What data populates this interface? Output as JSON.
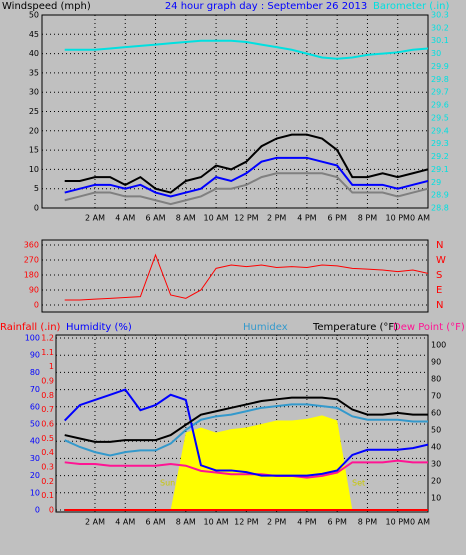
{
  "chart_data": [
    {
      "type": "line",
      "title": "24 hour graph day : September 26 2013",
      "ylabel": "Windspeed (mph)",
      "y2label": "Barometer (.in)",
      "x": [
        0,
        1,
        2,
        3,
        4,
        5,
        6,
        7,
        8,
        9,
        10,
        11,
        12,
        13,
        14,
        15,
        16,
        17,
        18,
        19,
        20,
        21,
        22,
        23,
        24
      ],
      "xlim": [
        -1.5,
        24
      ],
      "xticks": [
        {
          "value": 2,
          "label": "2 AM"
        },
        {
          "value": 4,
          "label": "4 AM"
        },
        {
          "value": 6,
          "label": "6 AM"
        },
        {
          "value": 8,
          "label": "8 AM"
        },
        {
          "value": 10,
          "label": "10 AM"
        },
        {
          "value": 12,
          "label": "12 PM"
        },
        {
          "value": 14,
          "label": "2 PM"
        },
        {
          "value": 16,
          "label": "4 PM"
        },
        {
          "value": 18,
          "label": "6 PM"
        },
        {
          "value": 20,
          "label": "8 PM"
        },
        {
          "value": 22,
          "label": "10 PM"
        },
        {
          "value": 24,
          "label": "0 AM"
        }
      ],
      "ylim": [
        0,
        50
      ],
      "yticks": [
        0,
        5,
        10,
        15,
        20,
        25,
        30,
        35,
        40,
        45,
        50
      ],
      "y2lim": [
        28.8,
        30.3
      ],
      "y2ticks": [
        28.8,
        28.9,
        29,
        29.1,
        29.2,
        29.3,
        29.4,
        29.5,
        29.6,
        29.7,
        29.8,
        29.9,
        30,
        30.1,
        30.2,
        30.3
      ],
      "grid": true,
      "series": [
        {
          "color": "#000000",
          "values": [
            7,
            7,
            8,
            8,
            6,
            8,
            5,
            4,
            7,
            8,
            11,
            10,
            12,
            16,
            18,
            19,
            19,
            18,
            15,
            8,
            8,
            9,
            8,
            9,
            10
          ]
        },
        {
          "color": "#808080",
          "values": [
            2,
            3,
            4,
            4,
            3,
            3,
            2,
            1,
            2,
            3,
            5,
            5,
            6,
            8,
            9,
            9,
            9,
            9,
            8,
            4,
            4,
            4,
            3,
            4,
            5
          ]
        },
        {
          "color": "#0000ff",
          "values": [
            4,
            5,
            6,
            6,
            5,
            6,
            4,
            3,
            4,
            5,
            8,
            7,
            9,
            12,
            13,
            13,
            13,
            12,
            11,
            6,
            6,
            6,
            5,
            6,
            7
          ]
        },
        {
          "color": "#00e0e0",
          "axis": "y2",
          "values": [
            30.03,
            30.03,
            30.03,
            30.04,
            30.05,
            30.06,
            30.07,
            30.08,
            30.09,
            30.1,
            30.1,
            30.1,
            30.09,
            30.07,
            30.05,
            30.03,
            30,
            29.97,
            29.96,
            29.97,
            29.99,
            30,
            30.01,
            30.03,
            30.04
          ]
        }
      ]
    },
    {
      "type": "line",
      "x": [
        0,
        1,
        2,
        3,
        4,
        5,
        6,
        7,
        8,
        9,
        10,
        11,
        12,
        13,
        14,
        15,
        16,
        17,
        18,
        19,
        20,
        21,
        22,
        23,
        24
      ],
      "xlim": [
        -1.5,
        24
      ],
      "ylim": [
        0,
        360
      ],
      "yticks": [
        0,
        90,
        180,
        270,
        360
      ],
      "y2ticks": [
        {
          "value": 360,
          "label": "N"
        },
        {
          "value": 270,
          "label": "W"
        },
        {
          "value": 180,
          "label": "S"
        },
        {
          "value": 90,
          "label": "E"
        },
        {
          "value": 0,
          "label": "N"
        }
      ],
      "grid": true,
      "series": [
        {
          "color": "#ff0000",
          "values": [
            30,
            30,
            35,
            40,
            45,
            50,
            300,
            60,
            40,
            90,
            220,
            240,
            230,
            240,
            225,
            230,
            225,
            240,
            235,
            220,
            215,
            210,
            200,
            210,
            190
          ]
        }
      ]
    },
    {
      "type": "line",
      "x": [
        0,
        1,
        2,
        3,
        4,
        5,
        6,
        7,
        8,
        9,
        10,
        11,
        12,
        13,
        14,
        15,
        16,
        17,
        18,
        19,
        20,
        21,
        22,
        23,
        24
      ],
      "xlim": [
        -1.5,
        24
      ],
      "xticks": [
        {
          "value": 2,
          "label": "2 AM"
        },
        {
          "value": 4,
          "label": "4 AM"
        },
        {
          "value": 6,
          "label": "6 AM"
        },
        {
          "value": 8,
          "label": "8 AM"
        },
        {
          "value": 10,
          "label": "10 AM"
        },
        {
          "value": 12,
          "label": "12 PM"
        },
        {
          "value": 14,
          "label": "2 PM"
        },
        {
          "value": 16,
          "label": "4 PM"
        },
        {
          "value": 18,
          "label": "6 PM"
        },
        {
          "value": 20,
          "label": "8 PM"
        },
        {
          "value": 22,
          "label": "10 PM"
        },
        {
          "value": 24,
          "label": "0 AM"
        }
      ],
      "ylim": [
        0,
        100
      ],
      "yticks": [
        0,
        10,
        20,
        30,
        40,
        50,
        60,
        70,
        80,
        90,
        100
      ],
      "y2lim": [
        3,
        104
      ],
      "y2ticks": [
        10,
        20,
        30,
        40,
        50,
        60,
        70,
        80,
        90,
        100
      ],
      "y3lim": [
        0,
        1.2
      ],
      "y3ticks": [
        0,
        0.1,
        0.2,
        0.3,
        0.4,
        0.5,
        0.6,
        0.7,
        0.8,
        0.9,
        1,
        1.1,
        1.2
      ],
      "grid": true,
      "annotations": [
        "Sun Rise",
        "Set"
      ],
      "solar": {
        "color": "#ffff00",
        "values": [
          0,
          0,
          0,
          0,
          0,
          0,
          0,
          0,
          45,
          48,
          45,
          47,
          48,
          50,
          52,
          52,
          53,
          55,
          52,
          0,
          0,
          0,
          0,
          0,
          0
        ]
      },
      "series": [
        {
          "name": "Rainfall (.in)",
          "color": "#ff0000",
          "axis": "y3",
          "values": [
            0,
            0,
            0,
            0,
            0,
            0,
            0,
            0,
            0,
            0,
            0,
            0,
            0,
            0,
            0,
            0,
            0,
            0,
            0,
            0,
            0,
            0,
            0,
            0,
            0
          ]
        },
        {
          "name": "Humidex",
          "color": "#3399cc",
          "axis": "y2",
          "values": [
            44,
            40,
            37,
            35,
            37,
            38,
            38,
            42,
            50,
            56,
            58,
            59,
            61,
            63,
            64,
            65,
            65,
            64,
            63,
            58,
            56,
            56,
            56,
            55,
            55
          ]
        },
        {
          "name": "Dew Point (°F)",
          "color": "#ff1493",
          "axis": "y2",
          "values": [
            31,
            30,
            30,
            29,
            29,
            29,
            29,
            30,
            29,
            26,
            25,
            24,
            24,
            24,
            23,
            23,
            22,
            23,
            25,
            31,
            31,
            31,
            32,
            31,
            31
          ]
        },
        {
          "name": "Humidity (%)",
          "color": "#0000ff",
          "values": [
            52,
            61,
            64,
            67,
            70,
            58,
            61,
            67,
            64,
            26,
            23,
            23,
            22,
            20,
            20,
            20,
            20,
            21,
            23,
            32,
            35,
            35,
            35,
            36,
            38
          ]
        },
        {
          "name": "Temperature (°F)",
          "color": "#000000",
          "axis": "y2",
          "values": [
            47,
            45,
            43,
            43,
            44,
            44,
            44,
            47,
            53,
            59,
            61,
            63,
            65,
            67,
            68,
            69,
            69,
            69,
            68,
            62,
            59,
            59,
            60,
            59,
            59
          ]
        }
      ]
    }
  ]
}
